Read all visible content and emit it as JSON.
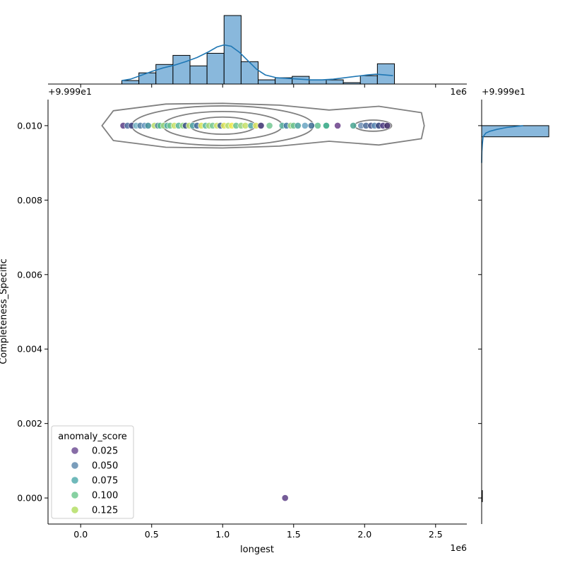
{
  "chart_data": {
    "type": "scatter",
    "subtype": "jointplot",
    "xlabel": "longest",
    "ylabel": "Completeness_Specific",
    "x_offset_text": "1e6",
    "y_offset_text": "+9.999e1",
    "x_ticks": [
      "0.0",
      "0.5",
      "1.0",
      "1.5",
      "2.0",
      "2.5"
    ],
    "x_tick_values": [
      0,
      500000,
      1000000,
      1500000,
      2000000,
      2500000
    ],
    "y_ticks": [
      "0.000",
      "0.002",
      "0.004",
      "0.006",
      "0.008",
      "0.010"
    ],
    "y_tick_values": [
      0,
      0.002,
      0.004,
      0.006,
      0.008,
      0.01
    ],
    "xlim": [
      -230000,
      2720000
    ],
    "ylim": [
      -0.0007,
      0.0107
    ],
    "hue": {
      "title": "anomaly_score",
      "legend_entries": [
        "0.025",
        "0.050",
        "0.075",
        "0.100",
        "0.125"
      ],
      "legend_values": [
        0.025,
        0.05,
        0.075,
        0.1,
        0.125
      ],
      "legend_colors": [
        "#7a5c9c",
        "#6b92b4",
        "#5fb1b3",
        "#79cc97",
        "#b8e06e"
      ],
      "legend_position": "lower-left"
    },
    "points": [
      {
        "x": 300000,
        "y": 0.01,
        "c": "#5d3f86"
      },
      {
        "x": 330000,
        "y": 0.01,
        "c": "#4f6fa0"
      },
      {
        "x": 360000,
        "y": 0.01,
        "c": "#3b3f7e"
      },
      {
        "x": 390000,
        "y": 0.01,
        "c": "#7ab8c8"
      },
      {
        "x": 420000,
        "y": 0.01,
        "c": "#4e7ea2"
      },
      {
        "x": 450000,
        "y": 0.01,
        "c": "#6a99c0"
      },
      {
        "x": 475000,
        "y": 0.01,
        "c": "#3f8f9a"
      },
      {
        "x": 520000,
        "y": 0.01,
        "c": "#b9db6c"
      },
      {
        "x": 545000,
        "y": 0.01,
        "c": "#3e7a97"
      },
      {
        "x": 560000,
        "y": 0.01,
        "c": "#5cc08e"
      },
      {
        "x": 585000,
        "y": 0.01,
        "c": "#9bd47f"
      },
      {
        "x": 610000,
        "y": 0.01,
        "c": "#4ca9a3"
      },
      {
        "x": 630000,
        "y": 0.01,
        "c": "#6dc58d"
      },
      {
        "x": 660000,
        "y": 0.01,
        "c": "#c9e06a"
      },
      {
        "x": 690000,
        "y": 0.01,
        "c": "#57b79c"
      },
      {
        "x": 720000,
        "y": 0.01,
        "c": "#8ed27f"
      },
      {
        "x": 740000,
        "y": 0.01,
        "c": "#3a4e86"
      },
      {
        "x": 765000,
        "y": 0.01,
        "c": "#bfe071"
      },
      {
        "x": 790000,
        "y": 0.01,
        "c": "#4b9ea6"
      },
      {
        "x": 820000,
        "y": 0.01,
        "c": "#3d6696"
      },
      {
        "x": 850000,
        "y": 0.01,
        "c": "#d6e35a"
      },
      {
        "x": 880000,
        "y": 0.01,
        "c": "#5db8a0"
      },
      {
        "x": 905000,
        "y": 0.01,
        "c": "#a8d978"
      },
      {
        "x": 930000,
        "y": 0.01,
        "c": "#79c995"
      },
      {
        "x": 960000,
        "y": 0.01,
        "c": "#cfe26a"
      },
      {
        "x": 985000,
        "y": 0.01,
        "c": "#3c5f92"
      },
      {
        "x": 1010000,
        "y": 0.01,
        "c": "#e0e65a"
      },
      {
        "x": 1040000,
        "y": 0.01,
        "c": "#b0da73"
      },
      {
        "x": 1065000,
        "y": 0.01,
        "c": "#eeea4e"
      },
      {
        "x": 1095000,
        "y": 0.01,
        "c": "#68c290"
      },
      {
        "x": 1130000,
        "y": 0.01,
        "c": "#94d17e"
      },
      {
        "x": 1160000,
        "y": 0.01,
        "c": "#c5df6a"
      },
      {
        "x": 1200000,
        "y": 0.01,
        "c": "#4fa5a3"
      },
      {
        "x": 1235000,
        "y": 0.01,
        "c": "#dbe45f"
      },
      {
        "x": 1270000,
        "y": 0.01,
        "c": "#3a2f6e"
      },
      {
        "x": 1330000,
        "y": 0.01,
        "c": "#74c893"
      },
      {
        "x": 1420000,
        "y": 0.01,
        "c": "#5ab5a0"
      },
      {
        "x": 1450000,
        "y": 0.01,
        "c": "#3f78a0"
      },
      {
        "x": 1480000,
        "y": 0.01,
        "c": "#9ad37d"
      },
      {
        "x": 1500000,
        "y": 0.01,
        "c": "#6cc18f"
      },
      {
        "x": 1530000,
        "y": 0.01,
        "c": "#4ba29f"
      },
      {
        "x": 1580000,
        "y": 0.01,
        "c": "#6aa4c2"
      },
      {
        "x": 1625000,
        "y": 0.01,
        "c": "#3d6c94"
      },
      {
        "x": 1670000,
        "y": 0.01,
        "c": "#62bf91"
      },
      {
        "x": 1730000,
        "y": 0.01,
        "c": "#2fa682"
      },
      {
        "x": 1810000,
        "y": 0.01,
        "c": "#6a3f8a"
      },
      {
        "x": 1920000,
        "y": 0.01,
        "c": "#49a592"
      },
      {
        "x": 1975000,
        "y": 0.01,
        "c": "#6f8fb5"
      },
      {
        "x": 2010000,
        "y": 0.01,
        "c": "#4a6a98"
      },
      {
        "x": 2045000,
        "y": 0.01,
        "c": "#3e4f86"
      },
      {
        "x": 2070000,
        "y": 0.01,
        "c": "#5b8ab4"
      },
      {
        "x": 2100000,
        "y": 0.01,
        "c": "#2e3d78"
      },
      {
        "x": 2130000,
        "y": 0.01,
        "c": "#4c3b80"
      },
      {
        "x": 2160000,
        "y": 0.01,
        "c": "#3a2462"
      },
      {
        "x": 1440000,
        "y": 0.0,
        "c": "#5d3f86"
      }
    ],
    "marginal_x": {
      "type": "histogram",
      "bins": [
        {
          "x0": 290000,
          "x1": 410000,
          "h": 5
        },
        {
          "x0": 410000,
          "x1": 530000,
          "h": 16
        },
        {
          "x0": 530000,
          "x1": 650000,
          "h": 28
        },
        {
          "x0": 650000,
          "x1": 770000,
          "h": 41
        },
        {
          "x0": 770000,
          "x1": 890000,
          "h": 26
        },
        {
          "x0": 890000,
          "x1": 1010000,
          "h": 44
        },
        {
          "x0": 1010000,
          "x1": 1130000,
          "h": 98
        },
        {
          "x0": 1130000,
          "x1": 1250000,
          "h": 32
        },
        {
          "x0": 1250000,
          "x1": 1370000,
          "h": 6
        },
        {
          "x0": 1370000,
          "x1": 1490000,
          "h": 9
        },
        {
          "x0": 1490000,
          "x1": 1610000,
          "h": 11
        },
        {
          "x0": 1610000,
          "x1": 1730000,
          "h": 6
        },
        {
          "x0": 1730000,
          "x1": 1850000,
          "h": 6
        },
        {
          "x0": 1850000,
          "x1": 1970000,
          "h": 2
        },
        {
          "x0": 1970000,
          "x1": 2090000,
          "h": 12
        },
        {
          "x0": 2090000,
          "x1": 2210000,
          "h": 29
        }
      ],
      "hmax": 100,
      "kde": [
        [
          290000,
          5
        ],
        [
          350000,
          7
        ],
        [
          420000,
          12
        ],
        [
          500000,
          18
        ],
        [
          580000,
          23
        ],
        [
          660000,
          27
        ],
        [
          740000,
          32
        ],
        [
          820000,
          38
        ],
        [
          900000,
          46
        ],
        [
          960000,
          53
        ],
        [
          1010000,
          56
        ],
        [
          1060000,
          54
        ],
        [
          1120000,
          45
        ],
        [
          1180000,
          33
        ],
        [
          1240000,
          21
        ],
        [
          1300000,
          13
        ],
        [
          1380000,
          9
        ],
        [
          1460000,
          8
        ],
        [
          1540000,
          7
        ],
        [
          1620000,
          6
        ],
        [
          1700000,
          6
        ],
        [
          1780000,
          7
        ],
        [
          1860000,
          9
        ],
        [
          1940000,
          11
        ],
        [
          2020000,
          13
        ],
        [
          2080000,
          14
        ],
        [
          2140000,
          13
        ],
        [
          2200000,
          12
        ]
      ]
    },
    "marginal_y": {
      "type": "histogram",
      "bins": [
        {
          "y0": 0.0097,
          "y1": 0.01,
          "w": 97
        },
        {
          "y0": -0.0001,
          "y1": 0.0002,
          "w": 1
        }
      ],
      "wmax": 100,
      "kde": [
        [
          0.01,
          60
        ],
        [
          0.00995,
          36
        ],
        [
          0.0099,
          22
        ],
        [
          0.00985,
          12
        ],
        [
          0.0098,
          6
        ],
        [
          0.0097,
          2
        ],
        [
          0.0095,
          1
        ],
        [
          0.0093,
          0.3
        ],
        [
          0.009,
          0
        ]
      ]
    },
    "contours": {
      "color": "#808080",
      "levels": [
        {
          "cx": 1000000,
          "cy": 0.01,
          "rx": 230000,
          "ry": 0.00023
        },
        {
          "cx": 1000000,
          "cy": 0.01,
          "rx": 420000,
          "ry": 0.00038
        },
        {
          "cx": 1000000,
          "cy": 0.01,
          "rx": 640000,
          "ry": 0.00053
        },
        {
          "cx": 2060000,
          "cy": 0.01,
          "rx": 130000,
          "ry": 0.00015
        }
      ],
      "outer": [
        [
          150000,
          0.01
        ],
        [
          230000,
          0.0104
        ],
        [
          600000,
          0.01058
        ],
        [
          1000000,
          0.0106
        ],
        [
          1400000,
          0.01055
        ],
        [
          1750000,
          0.01042
        ],
        [
          2100000,
          0.01052
        ],
        [
          2400000,
          0.01035
        ],
        [
          2420000,
          0.01
        ],
        [
          2400000,
          0.00965
        ],
        [
          2100000,
          0.00948
        ],
        [
          1750000,
          0.00958
        ],
        [
          1400000,
          0.00945
        ],
        [
          1000000,
          0.0094
        ],
        [
          600000,
          0.00942
        ],
        [
          230000,
          0.0096
        ]
      ]
    }
  }
}
